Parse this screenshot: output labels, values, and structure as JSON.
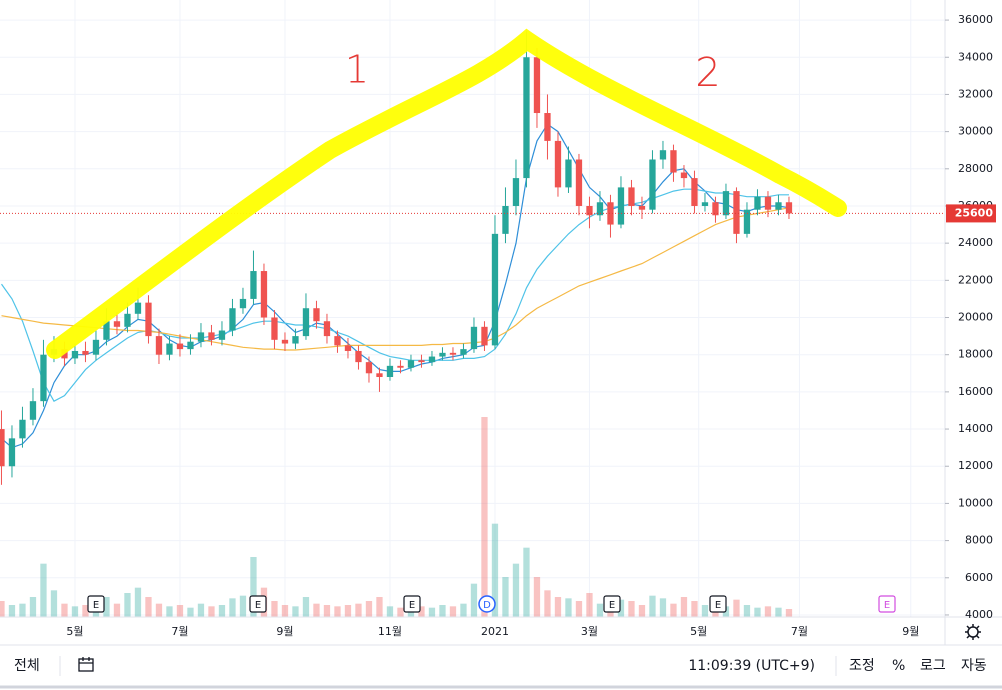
{
  "chart_data": {
    "type": "candlestick",
    "ylim": [
      3890,
      37080
    ],
    "yticks": [
      4000,
      6000,
      8000,
      10000,
      12000,
      14000,
      16000,
      18000,
      20000,
      22000,
      24000,
      26000,
      28000,
      30000,
      32000,
      34000,
      36000
    ],
    "xlim": [
      -0.14,
      89.86
    ],
    "xticks": [
      {
        "value": 7,
        "label": "5월"
      },
      {
        "value": 17,
        "label": "7월"
      },
      {
        "value": 27,
        "label": "9월"
      },
      {
        "value": 37,
        "label": "11월"
      },
      {
        "value": 47,
        "label": "2021"
      },
      {
        "value": 56,
        "label": "3월"
      },
      {
        "value": 66.4,
        "label": "5월"
      },
      {
        "value": 76,
        "label": "7월"
      },
      {
        "value": 86.6,
        "label": "9월"
      }
    ],
    "grid": true,
    "up_color": "#26a69a",
    "down_color": "#ef5350",
    "open": [
      14000,
      12000,
      13500,
      14500,
      15500,
      18000,
      18300,
      17800,
      18200,
      18000,
      18800,
      19800,
      19500,
      20200,
      20800,
      19000,
      18000,
      18600,
      18300,
      18700,
      19200,
      18800,
      19300,
      20500,
      21000,
      22500,
      20000,
      18800,
      18600,
      19000,
      20500,
      19800,
      19000,
      18500,
      18200,
      17600,
      17000,
      16800,
      17400,
      17300,
      17700,
      17600,
      17900,
      18100,
      18000,
      18300,
      19500,
      18500,
      24500,
      26000,
      27500,
      34000,
      31000,
      29500,
      27000,
      28500,
      26000,
      25500,
      26200,
      25000,
      27000,
      26000,
      25800,
      28500,
      29000,
      27800,
      27500,
      26000,
      26200,
      25500,
      26800,
      24500,
      25800,
      26500,
      25800,
      26200
    ],
    "high": [
      15000,
      14200,
      15200,
      16200,
      18800,
      19000,
      18700,
      18600,
      18700,
      19300,
      20500,
      20300,
      20800,
      21600,
      21200,
      19400,
      19000,
      19100,
      19100,
      19700,
      19600,
      19800,
      21000,
      21600,
      23600,
      22900,
      20400,
      19200,
      19400,
      21300,
      20900,
      20200,
      19300,
      18900,
      18500,
      17900,
      17300,
      17800,
      17700,
      18000,
      18000,
      18200,
      18400,
      18400,
      18600,
      20000,
      19800,
      25500,
      27000,
      28500,
      35400,
      34500,
      32000,
      30000,
      29200,
      28800,
      26500,
      26800,
      26600,
      27600,
      27400,
      26500,
      29000,
      29500,
      29300,
      28200,
      27900,
      26700,
      26500,
      27200,
      27000,
      26200,
      26900,
      26800,
      26600,
      26500
    ],
    "low": [
      11000,
      11400,
      13000,
      14200,
      15200,
      17600,
      17400,
      17500,
      17600,
      17700,
      18500,
      19100,
      19200,
      19900,
      18600,
      17500,
      17700,
      17900,
      18000,
      18400,
      18500,
      18500,
      19000,
      20200,
      20700,
      19600,
      18300,
      18200,
      18300,
      18800,
      19400,
      18600,
      18100,
      17800,
      17200,
      16500,
      16000,
      16600,
      17000,
      17100,
      17300,
      17400,
      17700,
      17700,
      17800,
      18100,
      18200,
      18300,
      24000,
      25500,
      27000,
      30200,
      28500,
      26500,
      26700,
      25500,
      24800,
      25200,
      24300,
      24800,
      25500,
      25300,
      25600,
      28000,
      27300,
      27000,
      25600,
      25700,
      25100,
      25300,
      24000,
      24300,
      25500,
      25400,
      25500,
      25300
    ],
    "close": [
      12000,
      13500,
      14500,
      15500,
      18000,
      18300,
      17800,
      18200,
      18000,
      18800,
      19800,
      19500,
      20200,
      20800,
      19000,
      18000,
      18600,
      18300,
      18700,
      19200,
      18800,
      19300,
      20500,
      21000,
      22500,
      20000,
      18800,
      18600,
      19000,
      20500,
      19800,
      19000,
      18500,
      18200,
      17600,
      17000,
      16800,
      17400,
      17300,
      17700,
      17600,
      17900,
      18100,
      18000,
      18300,
      19500,
      18500,
      24500,
      26000,
      27500,
      34000,
      31000,
      29500,
      27000,
      28500,
      26000,
      25500,
      26200,
      25000,
      27000,
      26000,
      25800,
      28500,
      29000,
      27800,
      27500,
      26000,
      26200,
      25500,
      26800,
      24500,
      25800,
      26500,
      25800,
      26200,
      25600
    ],
    "volume": {
      "vlim": [
        0,
        30000000
      ],
      "values": [
        1200000,
        900000,
        1000000,
        1500000,
        4000000,
        2000000,
        1000000,
        800000,
        900000,
        1300000,
        1500000,
        1000000,
        1800000,
        2200000,
        1500000,
        1000000,
        800000,
        900000,
        700000,
        1000000,
        800000,
        900000,
        1400000,
        1600000,
        4500000,
        2200000,
        1200000,
        900000,
        800000,
        1500000,
        1000000,
        900000,
        800000,
        900000,
        1000000,
        1200000,
        1500000,
        800000,
        700000,
        700000,
        800000,
        700000,
        900000,
        800000,
        1000000,
        2500000,
        15000000,
        7000000,
        3000000,
        4000000,
        5200000,
        3000000,
        2000000,
        1500000,
        1400000,
        1200000,
        1800000,
        1000000,
        1500000,
        1300000,
        1200000,
        900000,
        1600000,
        1400000,
        1000000,
        1500000,
        1200000,
        900000,
        1000000,
        800000,
        1300000,
        900000,
        700000,
        800000,
        700000,
        600000
      ]
    },
    "moving_averages": [
      {
        "color": "#2f8fd8",
        "values": [
          13500,
          13000,
          13200,
          13800,
          15000,
          16500,
          17400,
          18000,
          18000,
          18200,
          18700,
          19000,
          19500,
          19900,
          19800,
          19300,
          18800,
          18500,
          18400,
          18700,
          18800,
          19000,
          19400,
          19900,
          20700,
          20800,
          20300,
          19700,
          19200,
          19400,
          19700,
          19600,
          19100,
          18600,
          18100,
          17700,
          17200,
          17100,
          17100,
          17300,
          17500,
          17600,
          17800,
          17900,
          18000,
          18400,
          18500,
          19800,
          21800,
          24000,
          27500,
          29500,
          30400,
          30000,
          29000,
          28000,
          27000,
          26500,
          25800,
          26000,
          26100,
          26000,
          26600,
          27300,
          27900,
          28000,
          27300,
          26800,
          26200,
          26100,
          25800,
          25700,
          25900,
          26000,
          26000,
          25900
        ]
      },
      {
        "color": "#4fc3e8",
        "values": [
          21800,
          21000,
          19800,
          18200,
          16500,
          15500,
          15800,
          16500,
          17200,
          17700,
          18100,
          18500,
          18900,
          19200,
          19300,
          19200,
          19000,
          18900,
          18900,
          18900,
          19000,
          19100,
          19300,
          19500,
          19700,
          19800,
          19800,
          19700,
          19600,
          19600,
          19500,
          19400,
          19200,
          19000,
          18700,
          18400,
          18100,
          17900,
          17800,
          17700,
          17700,
          17700,
          17700,
          17700,
          17800,
          17800,
          17900,
          18300,
          19100,
          20200,
          21600,
          22600,
          23300,
          23900,
          24500,
          25000,
          25400,
          25700,
          25900,
          26000,
          26100,
          26200,
          26400,
          26600,
          26800,
          26900,
          26900,
          26800,
          26700,
          26700,
          26600,
          26500,
          26500,
          26500,
          26600,
          26600
        ]
      },
      {
        "color": "#f5b945",
        "values": [
          20100,
          20000,
          19900,
          19800,
          19700,
          19650,
          19600,
          19550,
          19500,
          19450,
          19400,
          19350,
          19300,
          19300,
          19250,
          19200,
          19100,
          19000,
          18900,
          18800,
          18700,
          18600,
          18500,
          18400,
          18350,
          18300,
          18300,
          18250,
          18250,
          18300,
          18350,
          18400,
          18450,
          18500,
          18500,
          18500,
          18500,
          18500,
          18500,
          18500,
          18500,
          18550,
          18550,
          18600,
          18600,
          18650,
          18700,
          18900,
          19200,
          19600,
          20100,
          20500,
          20800,
          21100,
          21400,
          21700,
          21900,
          22100,
          22300,
          22500,
          22700,
          22900,
          23200,
          23500,
          23800,
          24100,
          24400,
          24700,
          25000,
          25200,
          25400,
          25500,
          25600,
          25700,
          25800,
          25900
        ]
      }
    ],
    "last_price": 25600,
    "last_price_color": "#e53935",
    "event_markers": [
      "E",
      "E",
      "E",
      "D",
      "E",
      "E",
      "E"
    ],
    "annotations": [
      "1",
      "2"
    ]
  },
  "toolbar": {
    "range": "전체",
    "time": "11:09:39 (UTC+9)",
    "adjust": "조정",
    "percent": "%",
    "log": "로그",
    "auto": "자동"
  }
}
